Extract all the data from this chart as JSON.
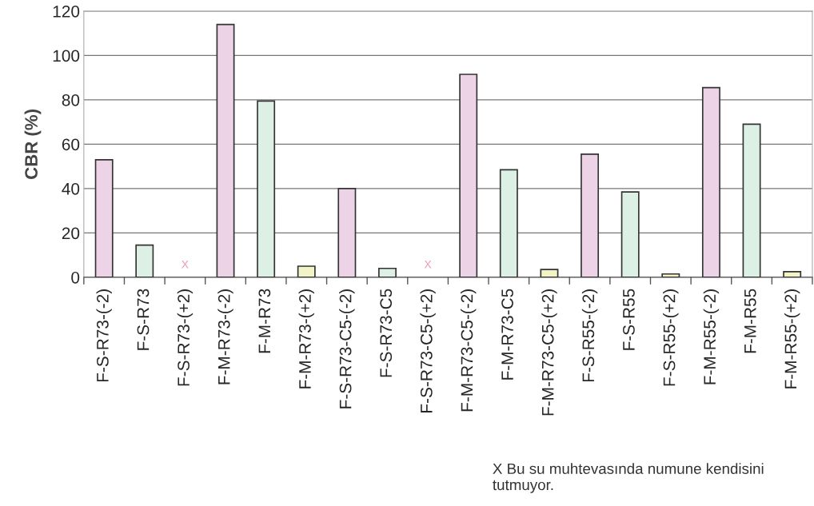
{
  "chart_data": {
    "type": "bar",
    "ylabel": "CBR (%)",
    "categories": [
      "F-S-R73-(-2)",
      "F-S-R73",
      "F-S-R73-(+2)",
      "F-M-R73-(-2)",
      "F-M-R73",
      "F-M-R73-(+2)",
      "F-S-R73-C5-(-2)",
      "F-S-R73-C5",
      "F-S-R73-C5-(+2)",
      "F-M-R73-C5-(-2)",
      "F-M-R73-C5",
      "F-M-R73-C5-(+2)",
      "F-S-R55-(-2)",
      "F-S-R55",
      "F-S-R55-(+2)",
      "F-M-R55-(-2)",
      "F-M-R55",
      "F-M-R55-(+2)"
    ],
    "values": [
      53,
      14.5,
      null,
      114,
      79.5,
      5,
      40,
      4,
      null,
      91.5,
      48.5,
      3.5,
      55.5,
      38.5,
      1.5,
      85.5,
      69,
      2.5
    ],
    "colors": [
      "#ecd3e6",
      "#dcf0e6",
      "#f3f3c8",
      "#ecd3e6",
      "#dcf0e6",
      "#f3f3c8",
      "#ecd3e6",
      "#dcf0e6",
      "#f3f3c8",
      "#ecd3e6",
      "#dcf0e6",
      "#f3f3c8",
      "#ecd3e6",
      "#dcf0e6",
      "#f3f3c8",
      "#ecd3e6",
      "#dcf0e6",
      "#f3f3c8"
    ],
    "ylim": [
      0,
      120
    ],
    "yticks": [
      0,
      20,
      40,
      60,
      80,
      100,
      120
    ],
    "grid": "y",
    "legend": false,
    "annotations": [
      "X",
      "X",
      "X Bu su muhtevasında numune kendisini tutmuyor."
    ]
  }
}
